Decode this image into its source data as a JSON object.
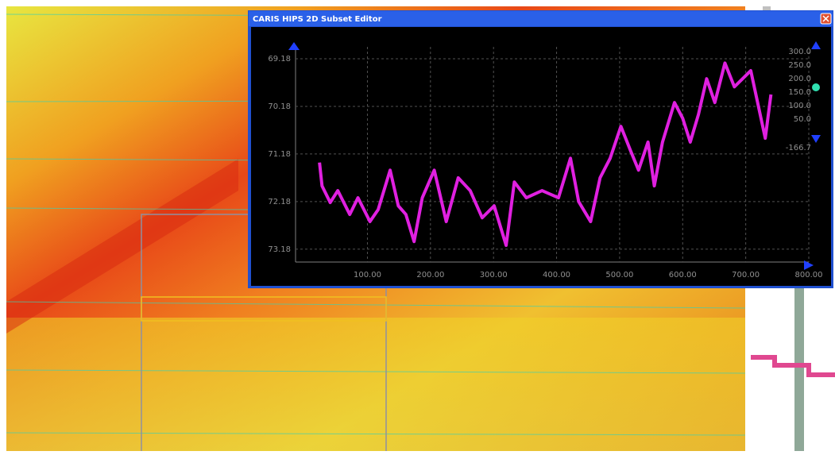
{
  "window": {
    "title": "CARIS HIPS 2D Subset Editor",
    "scale_labels": [
      "300.0",
      "250.0",
      "200.0",
      "150.0",
      "100.0",
      "50.0",
      "-166.7"
    ]
  },
  "chart_data": {
    "type": "line",
    "x": [
      24,
      28,
      41,
      53,
      72,
      85,
      104,
      117,
      136,
      149,
      161,
      174,
      187,
      206,
      225,
      244,
      263,
      282,
      301,
      320,
      333,
      352,
      377,
      403,
      422,
      435,
      454,
      469,
      485,
      502,
      517,
      530,
      545,
      555,
      568,
      587,
      600,
      612,
      625,
      638,
      651,
      667,
      682,
      708,
      731,
      740
    ],
    "series": [
      {
        "color": "#e020e0",
        "values": [
          71.36,
          71.85,
          72.2,
          71.95,
          72.45,
          72.1,
          72.6,
          72.35,
          71.52,
          72.27,
          72.45,
          73.02,
          72.1,
          71.52,
          72.6,
          71.68,
          71.95,
          72.52,
          72.27,
          73.1,
          71.77,
          72.1,
          71.95,
          72.1,
          71.27,
          72.18,
          72.6,
          71.68,
          71.27,
          70.6,
          71.1,
          71.52,
          70.93,
          71.85,
          70.93,
          70.1,
          70.43,
          70.93,
          70.35,
          69.6,
          70.1,
          69.27,
          69.77,
          69.43,
          70.85,
          69.93
        ]
      }
    ],
    "xlim": [
      -14,
      800
    ],
    "ylim": [
      73.45,
      68.93
    ],
    "xticks": [
      {
        "value": 100,
        "label": "100.00"
      },
      {
        "value": 200,
        "label": "200.00"
      },
      {
        "value": 300,
        "label": "300.00"
      },
      {
        "value": 400,
        "label": "400.00"
      },
      {
        "value": 500,
        "label": "500.00"
      },
      {
        "value": 600,
        "label": "600.00"
      },
      {
        "value": 700,
        "label": "700.00"
      },
      {
        "value": 800,
        "label": "800.00"
      }
    ],
    "yticks": [
      69.18,
      70.18,
      71.18,
      72.18,
      73.18
    ],
    "grid": true
  }
}
